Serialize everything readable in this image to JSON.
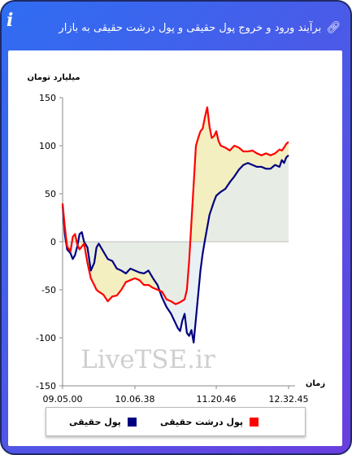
{
  "header": {
    "title": "برآیند ورود و خروج پول حقیقی و پول درشت حقیقی به بازار",
    "link_icon": "link-icon",
    "info_icon": "info-icon",
    "info_glyph": "i"
  },
  "watermark": "LiveTSE.ir",
  "colors": {
    "series1": "#000080",
    "series2": "#ff0000",
    "fill": "#f3efc0",
    "fill_neg_extra": "#e3ecf1"
  },
  "chart_data": {
    "type": "line",
    "ylabel": "میلیارد تومان",
    "xlabel": "زمان",
    "ylim": [
      -150,
      150
    ],
    "yticks": [
      150,
      100,
      50,
      0,
      -50,
      -100,
      -150
    ],
    "xlim": [
      0,
      100
    ],
    "xticks": [
      {
        "pos": 0,
        "label": "09.05.00"
      },
      {
        "pos": 32,
        "label": "10.06.38"
      },
      {
        "pos": 68,
        "label": "11.20.46"
      },
      {
        "pos": 100,
        "label": "12.32.45"
      }
    ],
    "grid": false,
    "legend_position": "bottom",
    "series": [
      {
        "name": "پول حقیقی",
        "color": "#000080",
        "x": [
          0,
          1,
          2,
          3.5,
          4.5,
          5.5,
          6.5,
          7.5,
          8.5,
          9.5,
          11,
          12.5,
          14,
          15,
          16,
          18,
          20,
          22,
          24,
          26,
          28,
          30,
          32,
          34,
          36,
          38,
          40,
          42,
          44,
          46,
          48,
          50,
          51,
          52,
          53,
          54,
          55,
          56,
          57,
          58,
          59,
          60,
          61,
          62,
          63,
          64,
          65,
          66,
          67,
          68,
          69,
          70,
          72,
          74,
          76,
          78,
          80,
          82,
          84,
          86,
          88,
          90,
          92,
          94,
          96,
          97,
          98,
          99,
          100
        ],
        "y": [
          38,
          8,
          -8,
          -12,
          -18,
          -14,
          -5,
          8,
          10,
          0,
          -6,
          -30,
          -22,
          -6,
          -2,
          -10,
          -18,
          -20,
          -28,
          -30,
          -33,
          -28,
          -30,
          -32,
          -33,
          -30,
          -38,
          -45,
          -58,
          -68,
          -75,
          -85,
          -90,
          -93,
          -82,
          -75,
          -95,
          -98,
          -92,
          -105,
          -80,
          -55,
          -30,
          -12,
          2,
          15,
          28,
          35,
          42,
          48,
          50,
          52,
          55,
          62,
          68,
          75,
          80,
          82,
          80,
          78,
          78,
          76,
          76,
          80,
          78,
          85,
          82,
          88,
          90
        ]
      },
      {
        "name": "پول درشت حقیقی",
        "color": "#ff0000",
        "x": [
          0,
          1,
          2,
          3.5,
          4.5,
          5.5,
          6.5,
          7.5,
          8.5,
          9.5,
          11,
          12.5,
          14,
          15,
          16,
          18,
          20,
          22,
          24,
          26,
          28,
          30,
          32,
          34,
          36,
          38,
          40,
          42,
          44,
          46,
          48,
          50,
          52,
          54,
          55,
          56,
          57,
          58,
          59,
          60,
          61,
          62,
          63,
          64,
          65,
          66,
          67,
          68,
          69,
          70,
          72,
          74,
          76,
          78,
          80,
          82,
          84,
          86,
          88,
          90,
          92,
          94,
          96,
          97,
          98,
          99,
          100
        ],
        "y": [
          40,
          15,
          -5,
          -10,
          5,
          8,
          -3,
          -8,
          -5,
          -2,
          -22,
          -38,
          -45,
          -50,
          -52,
          -55,
          -62,
          -57,
          -56,
          -50,
          -42,
          -40,
          -38,
          -40,
          -45,
          -45,
          -48,
          -50,
          -52,
          -60,
          -62,
          -65,
          -63,
          -60,
          -50,
          -20,
          20,
          60,
          100,
          108,
          115,
          118,
          130,
          140,
          120,
          108,
          110,
          115,
          105,
          100,
          98,
          95,
          100,
          98,
          94,
          94,
          95,
          92,
          90,
          92,
          90,
          92,
          96,
          95,
          98,
          102,
          104
        ]
      }
    ]
  },
  "legend": {
    "items": [
      {
        "label": "پول حقیقی",
        "color": "#000080"
      },
      {
        "label": "پول درشت حقیقی",
        "color": "#ff0000"
      }
    ]
  }
}
